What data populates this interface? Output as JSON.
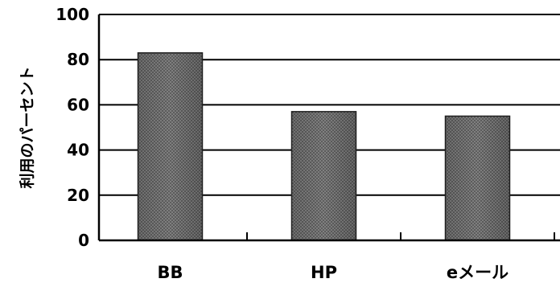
{
  "chart_data": {
    "type": "bar",
    "categories": [
      "BB",
      "HP",
      "eメール"
    ],
    "values": [
      83,
      57,
      55
    ],
    "title": "",
    "xlabel": "",
    "ylabel": "利用のパーセント",
    "ylim": [
      0,
      100
    ],
    "yticks": [
      0,
      20,
      40,
      60,
      80,
      100
    ],
    "grid": true,
    "legend": "none"
  },
  "colors": {
    "bar": "#6e6e6e",
    "bar_light": "#9a9a9a",
    "axis": "#000000",
    "background": "#ffffff"
  }
}
